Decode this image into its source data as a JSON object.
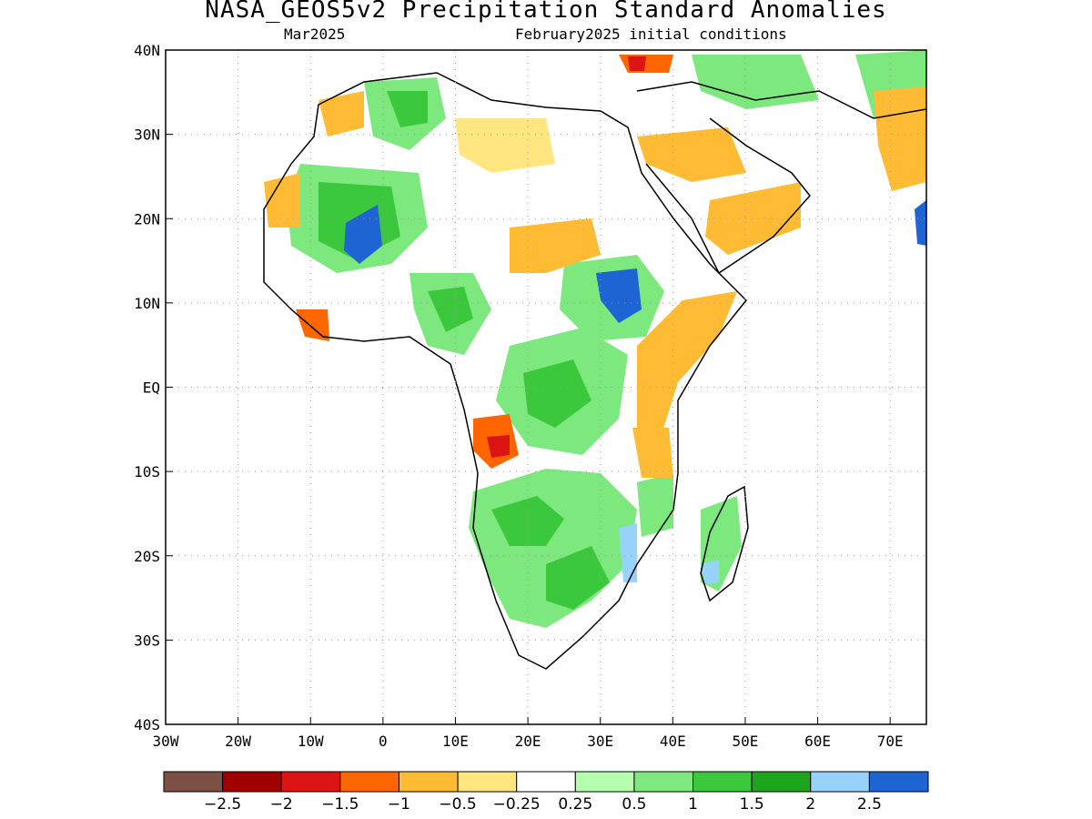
{
  "title": "NASA_GEOS5v2 Precipitation Standard Anomalies",
  "subtitle_left": "Mar2025",
  "subtitle_right": "February2025 initial conditions",
  "colors": {
    "frame": "#000000",
    "grid": "#9a9a9a",
    "land_outline": "#000000"
  },
  "map": {
    "lon_range": [
      -30,
      75
    ],
    "lat_range": [
      -40,
      40
    ],
    "lon_ticks": [
      "30W",
      "20W",
      "10W",
      "0",
      "10E",
      "20E",
      "30E",
      "40E",
      "50E",
      "60E",
      "70E"
    ],
    "lat_ticks": [
      "40N",
      "30N",
      "20N",
      "10N",
      "10S",
      "EQ",
      "20S",
      "30S",
      "40S"
    ]
  },
  "legend": {
    "colors": [
      "#7c5044",
      "#a00000",
      "#dd1414",
      "#ff6600",
      "#ffbb33",
      "#ffe680",
      "#ffffff",
      "#b3ffad",
      "#7de87d",
      "#3cc83c",
      "#1ea51e",
      "#96d2fa",
      "#1e64d2"
    ],
    "labels": [
      "−2.5",
      "−2",
      "−1.5",
      "−1",
      "−0.5",
      "−0.25",
      "0.25",
      "0.5",
      "1",
      "1.5",
      "2",
      "2.5"
    ]
  }
}
